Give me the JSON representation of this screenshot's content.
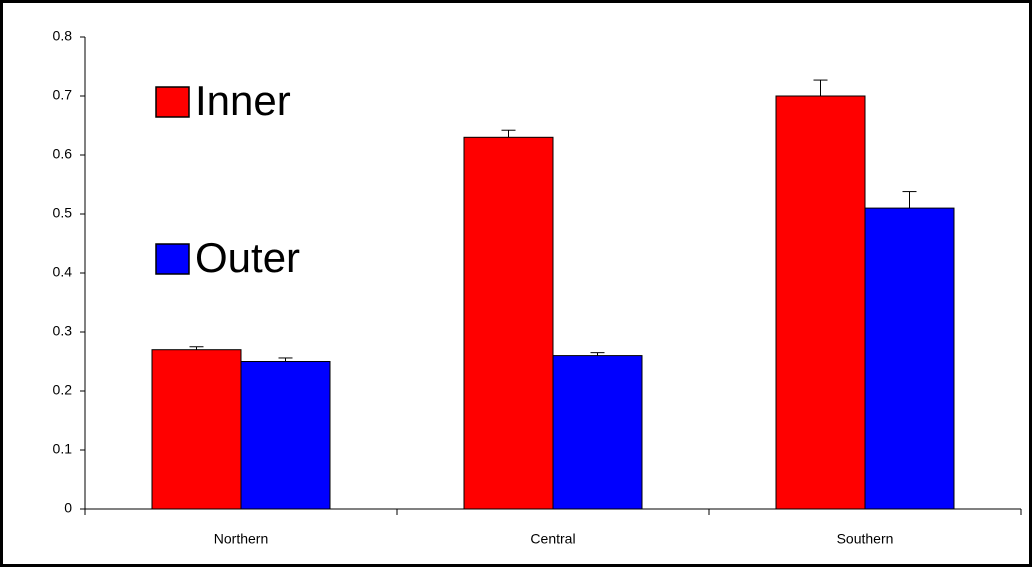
{
  "chart_data": {
    "type": "bar",
    "categories": [
      "Northern",
      "Central",
      "Southern"
    ],
    "series": [
      {
        "name": "Inner",
        "color": "#ff0000",
        "values": [
          0.27,
          0.63,
          0.7
        ],
        "errors": [
          0.005,
          0.012,
          0.027
        ]
      },
      {
        "name": "Outer",
        "color": "#0000ff",
        "values": [
          0.25,
          0.26,
          0.51
        ],
        "errors": [
          0.006,
          0.005,
          0.028
        ]
      }
    ],
    "ylim": [
      0,
      0.8
    ],
    "yticks": [
      0,
      0.1,
      0.2,
      0.3,
      0.4,
      0.5,
      0.6,
      0.7,
      0.8
    ],
    "grid": false,
    "legend": "left"
  }
}
